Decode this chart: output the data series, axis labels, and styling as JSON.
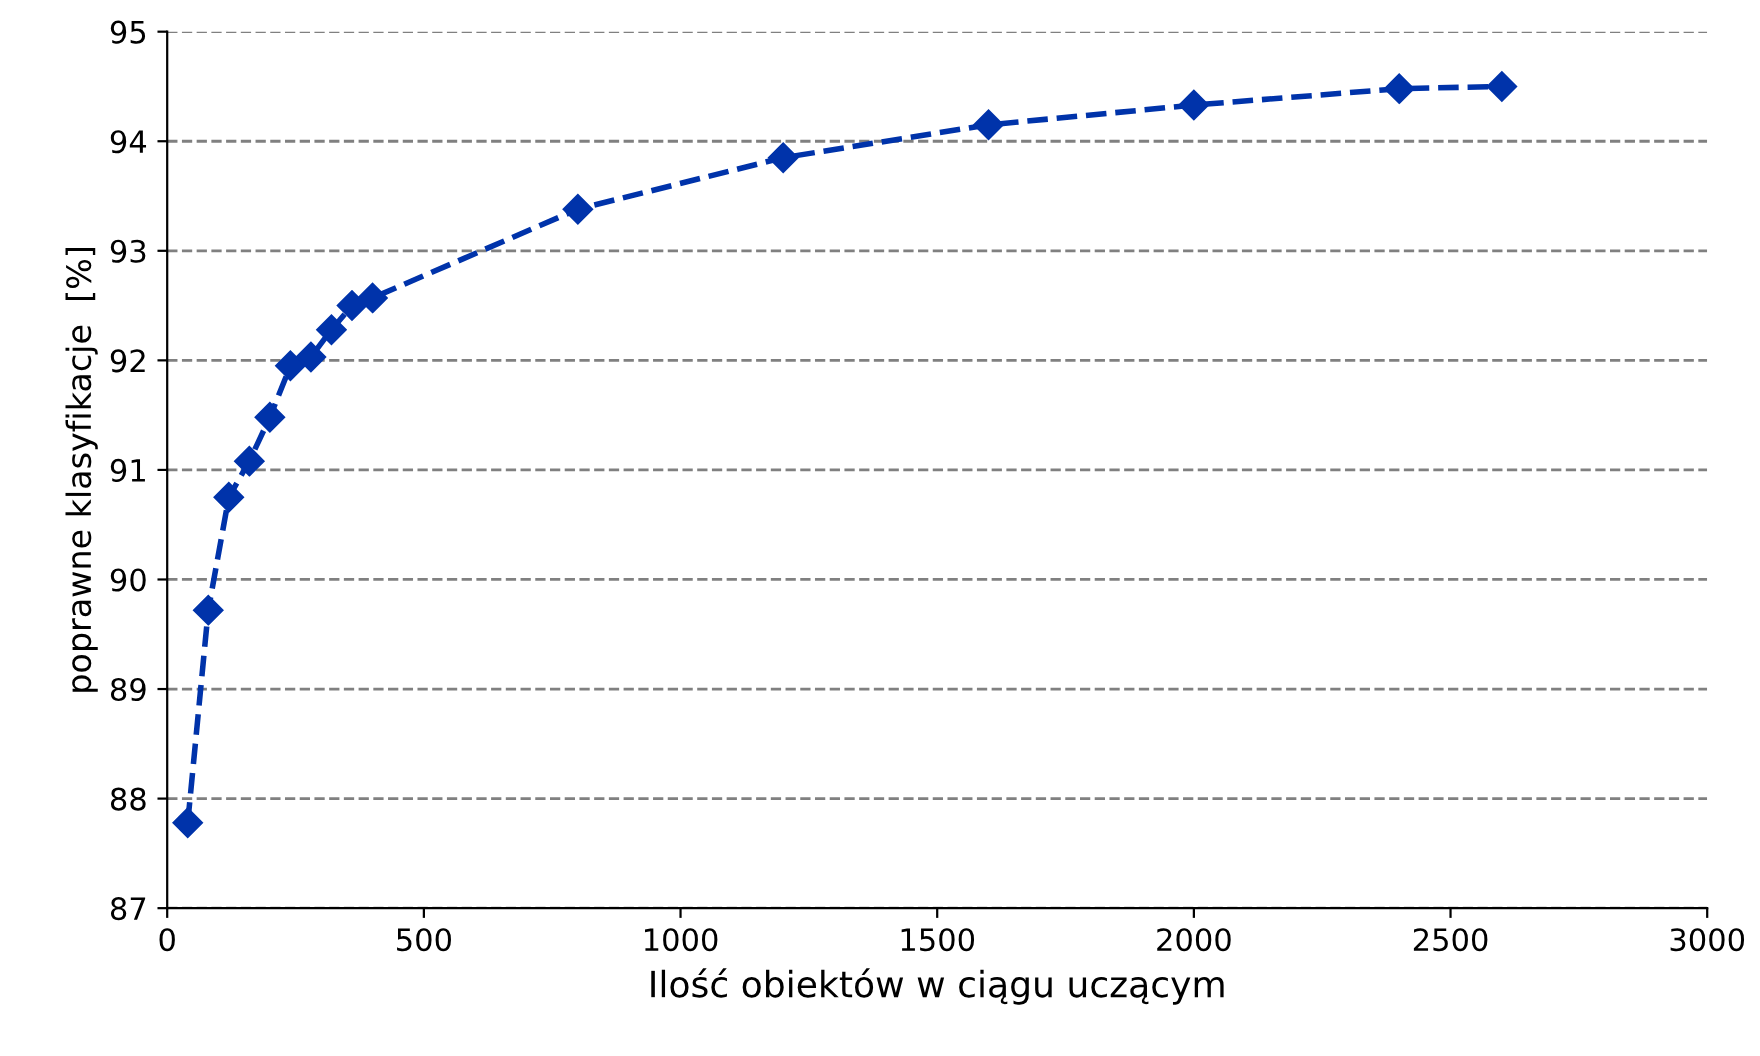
{
  "chart_data": {
    "type": "line",
    "xlabel": "Ilość obiektów w ciągu uczącym",
    "ylabel": "poprawne klasyfikacje  [%]",
    "x": [
      40,
      80,
      120,
      160,
      200,
      240,
      280,
      320,
      360,
      400,
      800,
      1200,
      1600,
      2000,
      2400,
      2600
    ],
    "series": [
      {
        "color": "#0033aa",
        "values": [
          87.78,
          89.72,
          90.75,
          91.08,
          91.48,
          91.95,
          92.03,
          92.28,
          92.5,
          92.57,
          93.38,
          93.85,
          94.15,
          94.33,
          94.48,
          94.5
        ]
      }
    ],
    "xlim": [
      0,
      3000
    ],
    "xticks": [
      0,
      500,
      1000,
      1500,
      2000,
      2500,
      3000
    ],
    "ylim": [
      87,
      95
    ],
    "yticks": [
      87,
      88,
      89,
      90,
      91,
      92,
      93,
      94,
      95
    ],
    "grid": "y",
    "marker": "diamond",
    "line_style": "dashed",
    "legend": false
  }
}
